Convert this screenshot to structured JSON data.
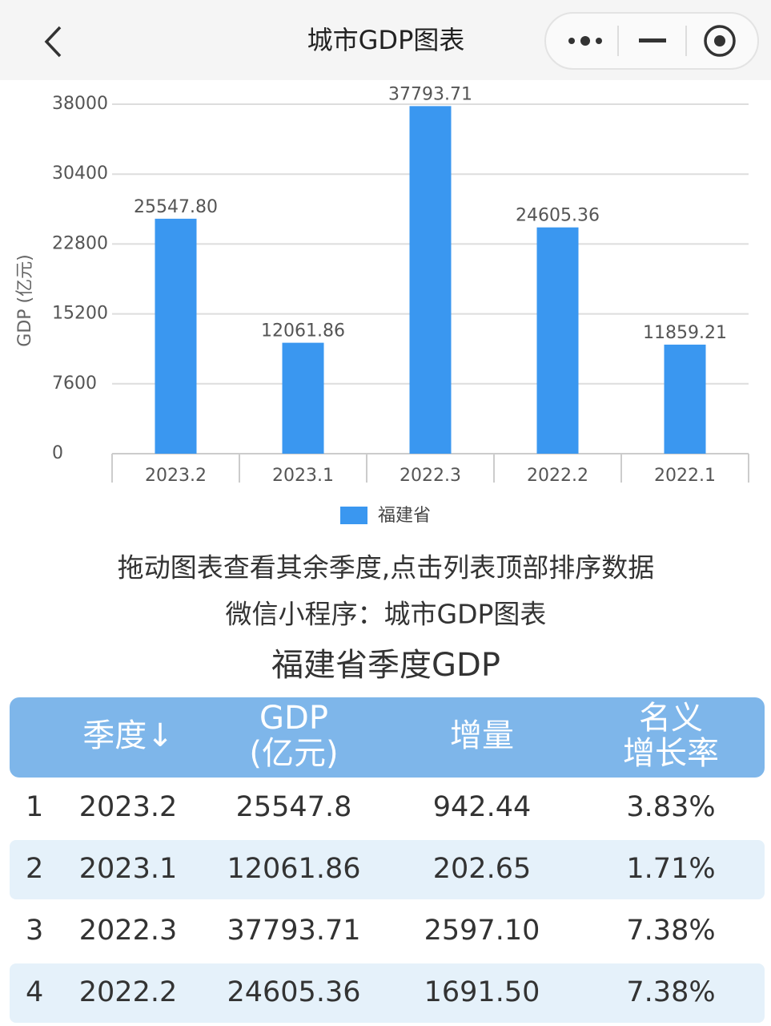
{
  "header": {
    "title": "城市GDP图表"
  },
  "chart_data": {
    "type": "bar",
    "ylabel": "GDP (亿元)",
    "categories": [
      "2023.2",
      "2023.1",
      "2022.3",
      "2022.2",
      "2022.1"
    ],
    "series": [
      {
        "name": "福建省",
        "color": "#3a97f0",
        "values": [
          25547.8,
          12061.86,
          37793.71,
          24605.36,
          11859.21
        ],
        "value_labels": [
          "25547.80",
          "12061.86",
          "37793.71",
          "24605.36",
          "11859.21"
        ]
      }
    ],
    "ylim": [
      0,
      38000
    ],
    "yticks": [
      0,
      7600,
      15200,
      22800,
      30400,
      38000
    ],
    "grid": true,
    "legend": "bottom"
  },
  "notes": [
    "拖动图表查看其余季度,点击列表顶部排序数据",
    "微信小程序：城市GDP图表"
  ],
  "table": {
    "title": "福建省季度GDP",
    "header": [
      [
        "季度↓"
      ],
      [
        "GDP",
        "(亿元)"
      ],
      [
        "增量"
      ],
      [
        "名义",
        "增长率"
      ]
    ],
    "rows": [
      [
        "1",
        "2023.2",
        "25547.8",
        "942.44",
        "3.83%"
      ],
      [
        "2",
        "2023.1",
        "12061.86",
        "202.65",
        "1.71%"
      ],
      [
        "3",
        "2022.3",
        "37793.71",
        "2597.10",
        "7.38%"
      ],
      [
        "4",
        "2022.2",
        "24605.36",
        "1691.50",
        "7.38%"
      ]
    ]
  }
}
